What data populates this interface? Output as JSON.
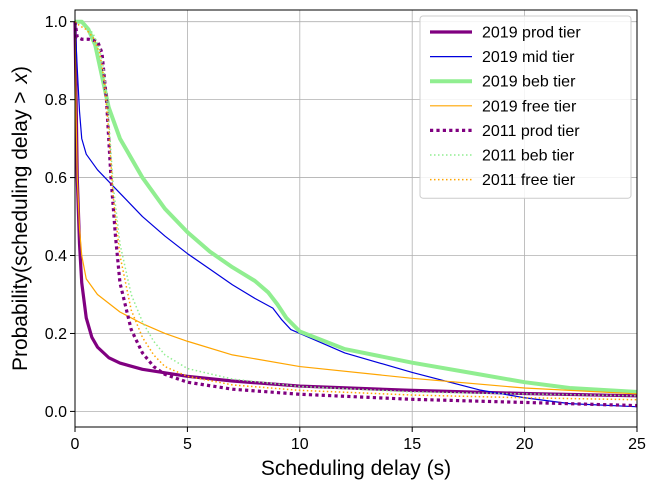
{
  "chart_data": {
    "type": "line",
    "title": "",
    "xlabel": "Scheduling delay (s)",
    "ylabel_prefix": "Probability(scheduling delay ",
    "ylabel_op": ">",
    "ylabel_var": "x",
    "ylabel_suffix": ")",
    "xlim": [
      0,
      25
    ],
    "ylim": [
      -0.04,
      1.03
    ],
    "xticks": [
      0,
      5,
      10,
      15,
      20,
      25
    ],
    "yticks": [
      0.0,
      0.2,
      0.4,
      0.6,
      0.8,
      1.0
    ],
    "xtick_labels": [
      "0",
      "5",
      "10",
      "15",
      "20",
      "25"
    ],
    "ytick_labels": [
      "0.0",
      "0.2",
      "0.4",
      "0.6",
      "0.8",
      "1.0"
    ],
    "grid": true,
    "legend_position": "top-right",
    "series": [
      {
        "name": "2019 prod tier",
        "color": "#800080",
        "width": 3.2,
        "dash": "solid",
        "x": [
          0,
          0.05,
          0.1,
          0.2,
          0.3,
          0.5,
          0.75,
          1.0,
          1.5,
          2.0,
          3.0,
          4.0,
          5.0,
          7.0,
          10.0,
          15.0,
          20.0,
          25.0
        ],
        "y": [
          1.0,
          0.8,
          0.6,
          0.43,
          0.33,
          0.24,
          0.19,
          0.165,
          0.138,
          0.124,
          0.108,
          0.099,
          0.09,
          0.078,
          0.065,
          0.054,
          0.046,
          0.04
        ]
      },
      {
        "name": "2019 mid tier",
        "color": "#0000dd",
        "width": 1.2,
        "dash": "solid",
        "x": [
          0,
          0.1,
          0.2,
          0.3,
          0.5,
          1.0,
          2.0,
          3.0,
          4.0,
          5.0,
          6.0,
          7.0,
          8.0,
          8.8,
          9.2,
          9.6,
          10.0,
          12.0,
          15.0,
          18.0,
          20.0,
          22.0,
          25.0
        ],
        "y": [
          1.0,
          0.88,
          0.77,
          0.7,
          0.66,
          0.62,
          0.56,
          0.5,
          0.45,
          0.405,
          0.365,
          0.325,
          0.29,
          0.265,
          0.235,
          0.21,
          0.2,
          0.15,
          0.1,
          0.055,
          0.035,
          0.02,
          0.012
        ]
      },
      {
        "name": "2019 beb tier",
        "color": "#90ee90",
        "width": 4.0,
        "dash": "solid",
        "x": [
          0,
          0.3,
          0.6,
          0.9,
          1.2,
          1.5,
          2.0,
          3.0,
          4.0,
          5.0,
          6.0,
          7.0,
          8.0,
          8.6,
          9.0,
          9.4,
          10.0,
          12.0,
          15.0,
          18.0,
          20.0,
          22.0,
          25.0
        ],
        "y": [
          1.0,
          1.0,
          0.98,
          0.94,
          0.86,
          0.78,
          0.7,
          0.6,
          0.52,
          0.46,
          0.41,
          0.37,
          0.335,
          0.305,
          0.275,
          0.24,
          0.205,
          0.16,
          0.125,
          0.095,
          0.075,
          0.06,
          0.05
        ]
      },
      {
        "name": "2019 free tier",
        "color": "#ffa500",
        "width": 1.2,
        "dash": "solid",
        "x": [
          0,
          0.05,
          0.1,
          0.2,
          0.3,
          0.5,
          1.0,
          2.0,
          3.0,
          4.0,
          5.0,
          7.0,
          10.0,
          15.0,
          20.0,
          25.0
        ],
        "y": [
          1.0,
          0.75,
          0.6,
          0.47,
          0.4,
          0.34,
          0.3,
          0.255,
          0.225,
          0.2,
          0.18,
          0.145,
          0.115,
          0.085,
          0.06,
          0.045
        ]
      },
      {
        "name": "2011 prod tier",
        "color": "#800080",
        "width": 3.2,
        "dash": "dot",
        "x": [
          0,
          0.1,
          0.3,
          0.6,
          1.0,
          1.2,
          1.4,
          1.6,
          1.8,
          2.0,
          2.5,
          3.0,
          3.5,
          4.0,
          5.0,
          7.0,
          10.0,
          15.0,
          20.0,
          25.0
        ],
        "y": [
          1.0,
          0.96,
          0.955,
          0.955,
          0.95,
          0.92,
          0.8,
          0.6,
          0.45,
          0.33,
          0.21,
          0.15,
          0.115,
          0.095,
          0.075,
          0.057,
          0.044,
          0.031,
          0.023,
          0.015
        ]
      },
      {
        "name": "2011 beb tier",
        "color": "#90ee90",
        "width": 1.5,
        "dash": "dot",
        "x": [
          0,
          0.2,
          0.5,
          0.8,
          1.1,
          1.3,
          1.5,
          1.7,
          2.0,
          2.5,
          3.0,
          3.5,
          4.0,
          5.0,
          7.0,
          10.0,
          15.0,
          20.0,
          25.0
        ],
        "y": [
          1.0,
          1.0,
          0.99,
          0.97,
          0.93,
          0.87,
          0.75,
          0.58,
          0.43,
          0.3,
          0.23,
          0.18,
          0.145,
          0.11,
          0.083,
          0.064,
          0.05,
          0.045,
          0.04
        ]
      },
      {
        "name": "2011 free tier",
        "color": "#ffa500",
        "width": 1.5,
        "dash": "dot",
        "x": [
          0,
          0.2,
          0.5,
          0.8,
          1.1,
          1.3,
          1.5,
          1.7,
          2.0,
          2.5,
          3.0,
          3.5,
          4.0,
          5.0,
          7.0,
          10.0,
          15.0,
          20.0,
          25.0
        ],
        "y": [
          1.0,
          0.99,
          0.98,
          0.96,
          0.92,
          0.85,
          0.72,
          0.55,
          0.4,
          0.26,
          0.19,
          0.145,
          0.115,
          0.09,
          0.068,
          0.054,
          0.042,
          0.035,
          0.03
        ]
      }
    ]
  }
}
